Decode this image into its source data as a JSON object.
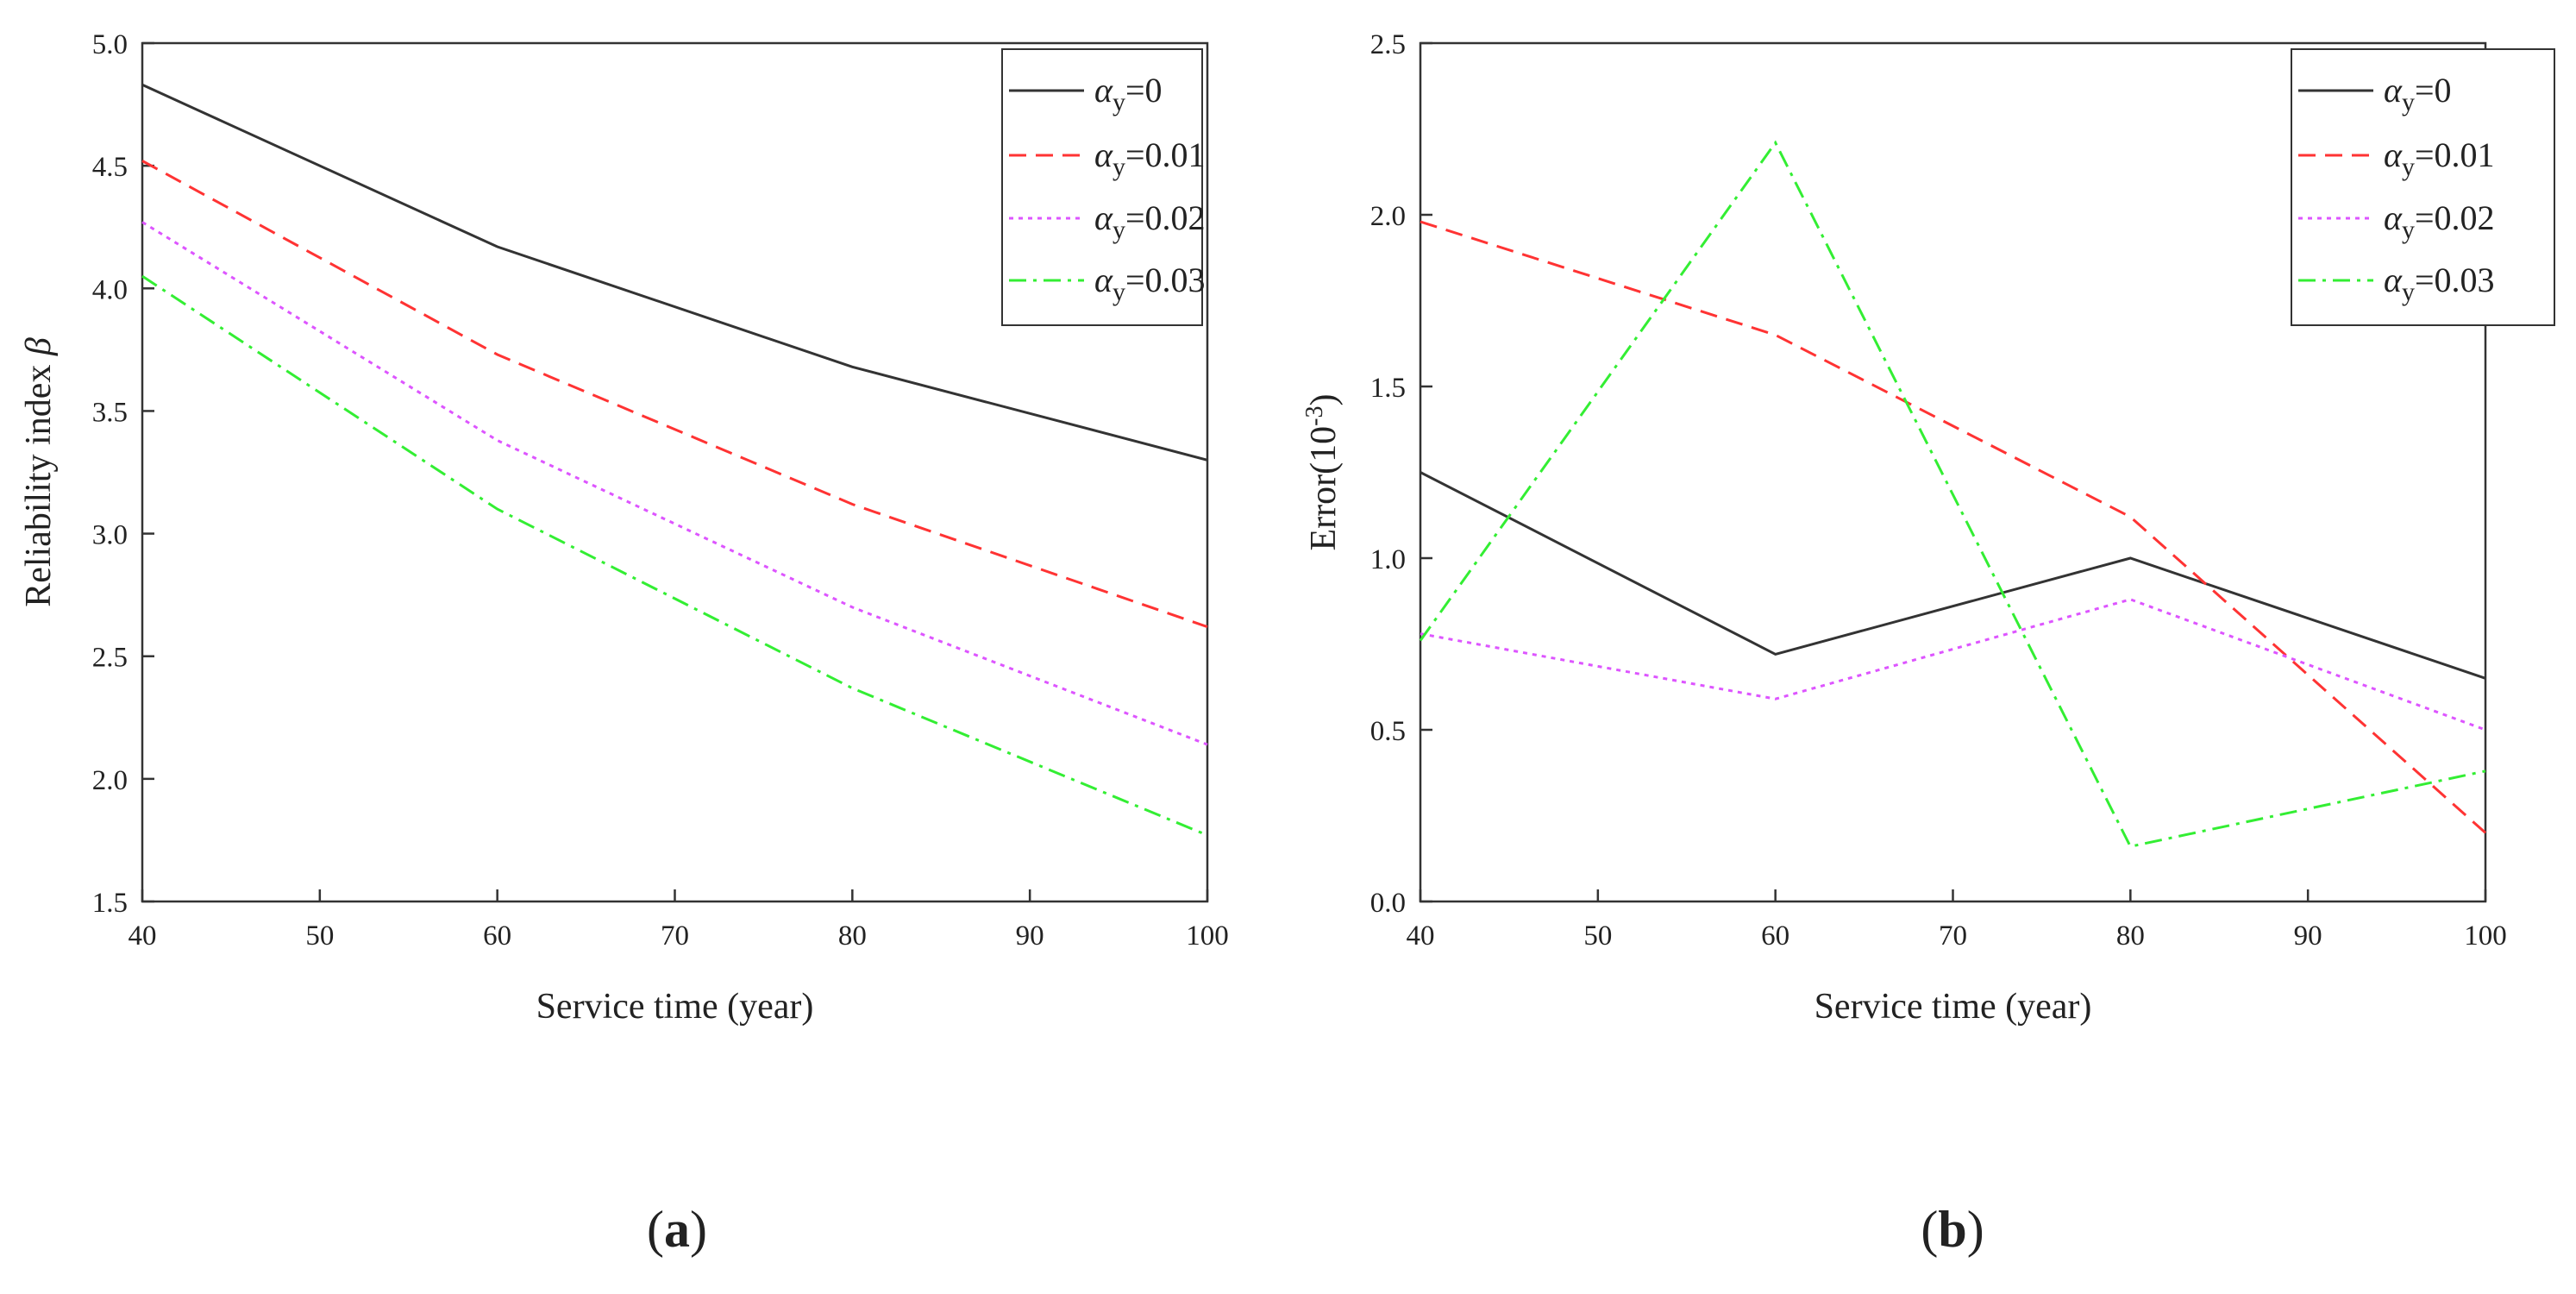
{
  "chart_data": [
    {
      "panel_label": "a",
      "type": "line",
      "xlabel": "Service time (year)",
      "ylabel": "Reliability index",
      "ylabel_symbol": "β",
      "xlim": [
        40,
        100
      ],
      "ylim": [
        1.5,
        5.0
      ],
      "xticks": [
        "40",
        "50",
        "60",
        "70",
        "80",
        "90",
        "100"
      ],
      "yticks": [
        "1.5",
        "2.0",
        "2.5",
        "3.0",
        "3.5",
        "4.0",
        "4.5",
        "5.0"
      ],
      "legend_position": "top-right",
      "x": [
        40,
        60,
        80,
        100
      ],
      "series": [
        {
          "name": "α",
          "subscript": "y",
          "value_label": "=0",
          "color": "#333333",
          "dash": "solid",
          "values": [
            4.83,
            4.17,
            3.68,
            3.3
          ]
        },
        {
          "name": "α",
          "subscript": "y",
          "value_label": "=0.01",
          "color": "#ff3333",
          "dash": "dash",
          "values": [
            4.52,
            3.73,
            3.12,
            2.62
          ]
        },
        {
          "name": "α",
          "subscript": "y",
          "value_label": "=0.02",
          "color": "#dd55ff",
          "dash": "dot",
          "values": [
            4.27,
            3.38,
            2.7,
            2.14
          ]
        },
        {
          "name": "α",
          "subscript": "y",
          "value_label": "=0.03",
          "color": "#33ee33",
          "dash": "dashdot",
          "values": [
            4.05,
            3.1,
            2.37,
            1.77
          ]
        }
      ]
    },
    {
      "panel_label": "b",
      "type": "line",
      "xlabel": "Service time (year)",
      "ylabel": "Error(10",
      "ylabel_superscript": "-3",
      "ylabel_suffix": ")",
      "xlim": [
        40,
        100
      ],
      "ylim": [
        0.0,
        2.5
      ],
      "xticks": [
        "40",
        "50",
        "60",
        "70",
        "80",
        "90",
        "100"
      ],
      "yticks": [
        "0.0",
        "0.5",
        "1.0",
        "1.5",
        "2.0",
        "2.5"
      ],
      "legend_position": "top-right",
      "x": [
        40,
        60,
        80,
        100
      ],
      "series": [
        {
          "name": "α",
          "subscript": "y",
          "value_label": "=0",
          "color": "#333333",
          "dash": "solid",
          "values": [
            1.25,
            0.72,
            1.0,
            0.65
          ]
        },
        {
          "name": "α",
          "subscript": "y",
          "value_label": "=0.01",
          "color": "#ff3333",
          "dash": "dash",
          "values": [
            1.98,
            1.65,
            1.12,
            0.2
          ]
        },
        {
          "name": "α",
          "subscript": "y",
          "value_label": "=0.02",
          "color": "#dd55ff",
          "dash": "dot",
          "values": [
            0.78,
            0.59,
            0.88,
            0.5
          ]
        },
        {
          "name": "α",
          "subscript": "y",
          "value_label": "=0.03",
          "color": "#33ee33",
          "dash": "dashdot",
          "values": [
            0.76,
            2.21,
            0.16,
            0.38
          ]
        }
      ]
    }
  ]
}
